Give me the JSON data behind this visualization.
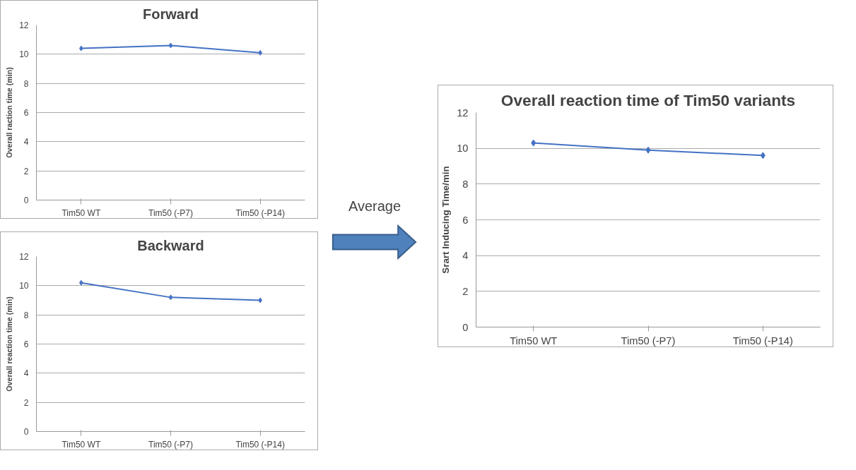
{
  "chart_data": [
    {
      "type": "line",
      "title": "Forward",
      "ylabel": "Overall raction time (min)",
      "categories": [
        "Tim50 WT",
        "Tim50 (-P7)",
        "Tim50 (-P14)"
      ],
      "series": [
        {
          "color": "#4472c4",
          "values": [
            10.4,
            10.6,
            10.1
          ]
        }
      ],
      "ylim": [
        0,
        12
      ],
      "yticks": [
        0,
        2,
        4,
        6,
        8,
        10,
        12
      ],
      "grid": "y",
      "marker": "diamond",
      "line_style": "solid"
    },
    {
      "type": "line",
      "title": "Backward",
      "ylabel": "Overall reaction time (min)",
      "categories": [
        "Tim50 WT",
        "Tim50 (-P7)",
        "Tim50 (-P14)"
      ],
      "series": [
        {
          "color": "#4472c4",
          "values": [
            10.2,
            9.2,
            9.0
          ]
        }
      ],
      "ylim": [
        0,
        12
      ],
      "yticks": [
        0,
        2,
        4,
        6,
        8,
        10,
        12
      ],
      "grid": "y",
      "marker": "diamond",
      "line_style": "solid"
    },
    {
      "type": "other",
      "annotations": [
        "Average"
      ]
    },
    {
      "type": "line",
      "title": "Overall reaction time of Tim50 variants",
      "ylabel": "Srart Inducing Time/min",
      "categories": [
        "Tim50 WT",
        "Tim50 (-P7)",
        "Tim50 (-P14)"
      ],
      "series": [
        {
          "color": "#4472c4",
          "values": [
            10.3,
            9.9,
            9.6
          ]
        }
      ],
      "ylim": [
        0,
        12
      ],
      "yticks": [
        0,
        2,
        4,
        6,
        8,
        10,
        12
      ],
      "grid": "y",
      "marker": "diamond",
      "line_style": "solid"
    }
  ]
}
